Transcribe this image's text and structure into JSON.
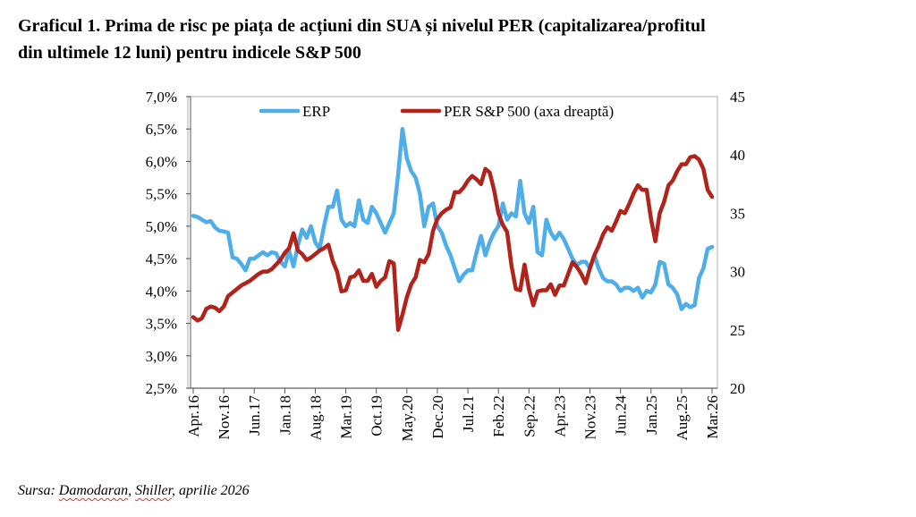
{
  "title_line1": "Graficul 1. Prima de risc pe piața de acțiuni din SUA și nivelul PER (capitalizarea/profitul",
  "title_line2": "din ultimele 12 luni) pentru indicele S&P 500",
  "source": {
    "prefix": "Sursa: ",
    "a": "Damodaran",
    "sep": ", ",
    "b": "Shiller",
    "suffix": ", aprilie 2026"
  },
  "chart_data": {
    "type": "line",
    "title": "Graficul 1. Prima de risc pe piața de acțiuni din SUA și nivelul PER (capitalizarea/profitul din ultimele 12 luni) pentru indicele S&P 500",
    "x_start": "Apr.16",
    "x_end": "Mar.26",
    "x_frequency": "monthly",
    "x_tick_labels": [
      "Apr.16",
      "Nov.16",
      "Jun.17",
      "Jan.18",
      "Aug.18",
      "Mar.19",
      "Oct.19",
      "May.20",
      "Dec.20",
      "Jul.21",
      "Feb.22",
      "Sep.22",
      "Apr.23",
      "Nov.23",
      "Jun.24",
      "Jan.25",
      "Aug.25",
      "Mar.26"
    ],
    "y_left": {
      "ticks": [
        "2,5%",
        "3,0%",
        "3,5%",
        "4,0%",
        "4,5%",
        "5,0%",
        "5,5%",
        "6,0%",
        "6,5%",
        "7,0%"
      ],
      "range": [
        2.5,
        7.0
      ],
      "unit": "%"
    },
    "y_right": {
      "ticks": [
        "20",
        "25",
        "30",
        "35",
        "40",
        "45"
      ],
      "range": [
        20,
        45
      ]
    },
    "grid": false,
    "legend_placement": "top",
    "series": [
      {
        "name": "ERP",
        "axis": "left",
        "color": "#4FAEE8",
        "values": [
          5.16,
          5.14,
          5.1,
          5.06,
          5.08,
          4.98,
          4.93,
          4.92,
          4.9,
          4.52,
          4.5,
          4.42,
          4.32,
          4.5,
          4.5,
          4.55,
          4.6,
          4.55,
          4.6,
          4.58,
          4.45,
          4.38,
          4.62,
          4.38,
          4.7,
          4.95,
          4.82,
          5.0,
          4.75,
          4.65,
          5.0,
          5.3,
          5.3,
          5.55,
          5.1,
          5.0,
          5.05,
          5.0,
          5.4,
          5.1,
          5.05,
          5.3,
          5.2,
          5.05,
          4.9,
          5.05,
          5.2,
          5.8,
          6.5,
          6.05,
          5.85,
          5.75,
          5.5,
          5.0,
          5.3,
          5.35,
          5.0,
          4.9,
          4.7,
          4.55,
          4.35,
          4.15,
          4.25,
          4.32,
          4.32,
          4.6,
          4.85,
          4.55,
          4.75,
          4.9,
          5.0,
          5.35,
          5.1,
          5.2,
          5.15,
          5.7,
          5.2,
          5.05,
          5.3,
          4.6,
          4.55,
          5.1,
          4.9,
          4.8,
          4.9,
          4.8,
          4.65,
          4.5,
          4.4,
          4.45,
          4.45,
          4.35,
          4.55,
          4.35,
          4.2,
          4.15,
          4.15,
          4.1,
          4.0,
          4.05,
          4.05,
          4.0,
          4.05,
          3.9,
          4.0,
          3.98,
          4.1,
          4.45,
          4.42,
          4.1,
          4.05,
          3.95,
          3.72,
          3.8,
          3.75,
          3.78,
          4.2,
          4.35,
          4.65,
          4.68
        ]
      },
      {
        "name": "PER S&P 500 (axa dreaptă)",
        "axis": "right",
        "color": "#B0241C",
        "values": [
          26.1,
          25.8,
          26.0,
          26.8,
          27.0,
          26.9,
          26.6,
          27.0,
          27.9,
          28.2,
          28.5,
          28.8,
          29.0,
          29.2,
          29.5,
          29.8,
          30.0,
          30.0,
          30.2,
          30.6,
          31.0,
          31.6,
          32.0,
          33.3,
          31.8,
          31.5,
          31.0,
          31.2,
          31.5,
          31.8,
          32.0,
          32.3,
          30.9,
          30.0,
          28.3,
          28.4,
          29.5,
          29.6,
          30.1,
          29.2,
          29.2,
          29.8,
          28.7,
          29.2,
          29.5,
          30.9,
          30.7,
          25.0,
          26.3,
          27.8,
          28.9,
          29.5,
          31.0,
          30.8,
          31.5,
          33.5,
          34.5,
          35.0,
          35.3,
          35.5,
          36.8,
          36.8,
          37.2,
          37.8,
          38.2,
          37.9,
          37.5,
          38.8,
          38.5,
          37.0,
          35.0,
          34.0,
          33.4,
          30.5,
          28.5,
          28.4,
          30.6,
          28.5,
          27.1,
          28.3,
          28.4,
          28.4,
          28.9,
          28.0,
          28.8,
          28.8,
          29.8,
          30.8,
          30.4,
          29.8,
          29.0,
          30.3,
          31.4,
          32.2,
          33.2,
          33.8,
          33.5,
          34.3,
          35.2,
          35.0,
          35.8,
          36.7,
          37.4,
          37.0,
          37.0,
          34.5,
          32.6,
          35.0,
          36.0,
          37.4,
          37.8,
          38.6,
          39.2,
          39.2,
          39.8,
          39.9,
          39.6,
          38.8,
          37.0,
          36.4
        ]
      }
    ]
  }
}
